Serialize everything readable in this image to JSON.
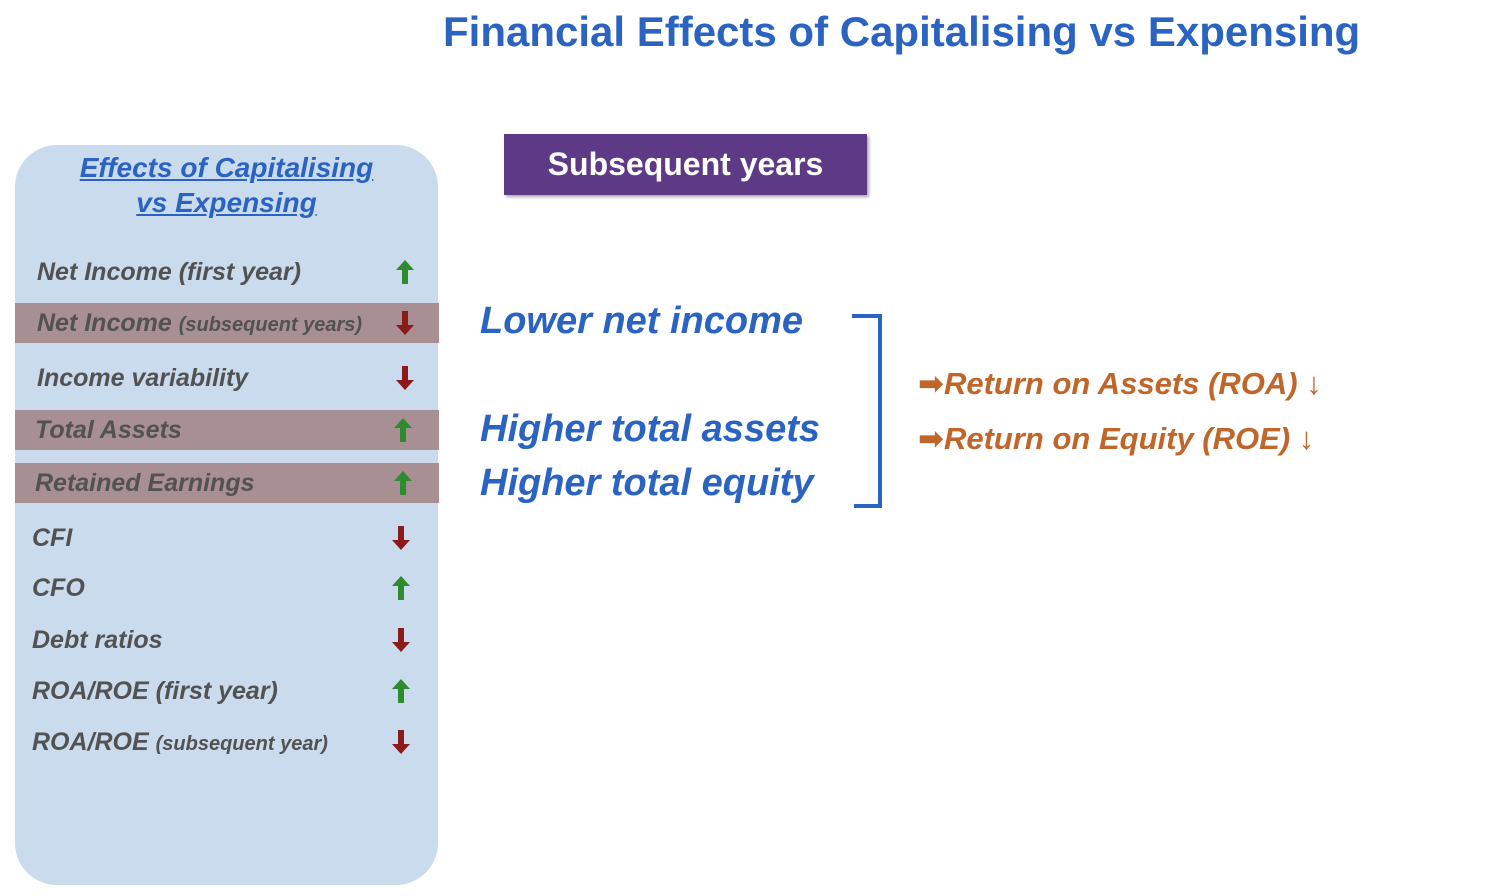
{
  "title": "Financial Effects of Capitalising vs Expensing",
  "panel": {
    "title_line1": "Effects of Capitalising",
    "title_line2": "vs Expensing",
    "rows": [
      {
        "label": "Net Income (first year)",
        "suffix": "",
        "direction": "up",
        "highlight": false
      },
      {
        "label": "Net Income ",
        "suffix": "(subsequent years)",
        "direction": "down",
        "highlight": true
      },
      {
        "label": "Income variability",
        "suffix": "",
        "direction": "down",
        "highlight": false
      },
      {
        "label": "Total Assets",
        "suffix": "",
        "direction": "up",
        "highlight": true
      },
      {
        "label": "Retained Earnings",
        "suffix": "",
        "direction": "up",
        "highlight": true
      },
      {
        "label": "CFI",
        "suffix": "",
        "direction": "down",
        "highlight": false
      },
      {
        "label": "CFO",
        "suffix": "",
        "direction": "up",
        "highlight": false
      },
      {
        "label": "Debt ratios",
        "suffix": "",
        "direction": "down",
        "highlight": false
      },
      {
        "label": "ROA/ROE (first year)",
        "suffix": "",
        "direction": "up",
        "highlight": false
      },
      {
        "label": "ROA/ROE ",
        "suffix": "(subsequent year)",
        "direction": "down",
        "highlight": false
      }
    ]
  },
  "badge": "Subsequent years",
  "effects": [
    "Lower net income",
    "Higher total assets",
    "Higher total equity"
  ],
  "results": [
    "➡Return on Assets (ROA) ↓",
    "➡Return on Equity (ROE) ↓"
  ],
  "colors": {
    "title": "#2a63c2",
    "panel_bg": "#c9dbec",
    "highlight_row": "#a88f93",
    "badge_bg": "#5e3a86",
    "up_arrow": "#2e8b2e",
    "down_arrow": "#8b1a1a",
    "result_text": "#c0662a"
  }
}
